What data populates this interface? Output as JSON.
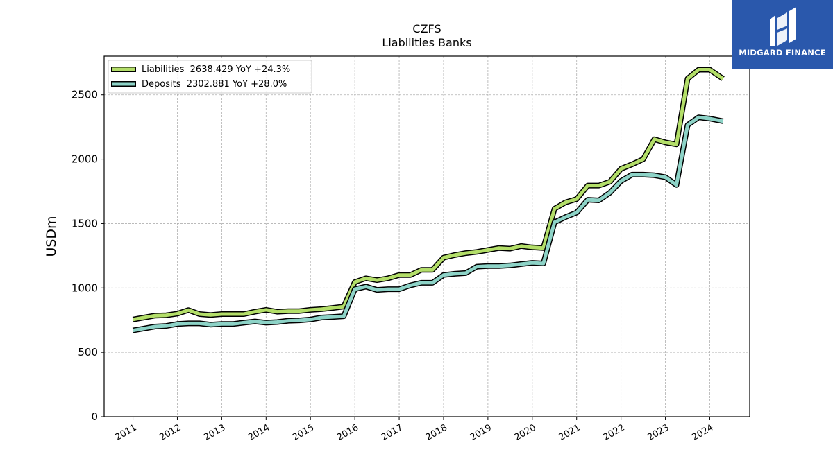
{
  "brand": {
    "name": "MIDGARD FINANCE",
    "background": "#2a58ac",
    "icon": "midgard-logo-icon"
  },
  "chart_data": {
    "type": "line",
    "title": "CZFS",
    "subtitle": "Liabilities Banks",
    "xlabel": "",
    "ylabel": "USDm",
    "ylim": [
      0,
      2800
    ],
    "xlim": [
      2010.35,
      2024.9
    ],
    "yticks": [
      0,
      500,
      1000,
      1500,
      2000,
      2500
    ],
    "xticks": [
      2011,
      2012,
      2013,
      2014,
      2015,
      2016,
      2017,
      2018,
      2019,
      2020,
      2021,
      2022,
      2023,
      2024
    ],
    "xtick_labels": [
      "2011",
      "2012",
      "2013",
      "2014",
      "2015",
      "2016",
      "2017",
      "2018",
      "2019",
      "2020",
      "2021",
      "2022",
      "2023",
      "2024"
    ],
    "grid": true,
    "legend_position": "top-left",
    "x": [
      2011.0,
      2011.25,
      2011.5,
      2011.75,
      2012.0,
      2012.25,
      2012.5,
      2012.75,
      2013.0,
      2013.25,
      2013.5,
      2013.75,
      2014.0,
      2014.25,
      2014.5,
      2014.75,
      2015.0,
      2015.25,
      2015.5,
      2015.75,
      2016.0,
      2016.25,
      2016.5,
      2016.75,
      2017.0,
      2017.25,
      2017.5,
      2017.75,
      2018.0,
      2018.25,
      2018.5,
      2018.75,
      2019.0,
      2019.25,
      2019.5,
      2019.75,
      2020.0,
      2020.25,
      2020.5,
      2020.75,
      2021.0,
      2021.25,
      2021.5,
      2021.75,
      2022.0,
      2022.25,
      2022.5,
      2022.75,
      2023.0,
      2023.25,
      2023.5,
      2023.75,
      2024.0,
      2024.3
    ],
    "series": [
      {
        "name": "Liabilities",
        "legend": "Liabilities  2638.429 YoY +24.3%",
        "color": "#b3de69",
        "values": [
          755,
          770,
          785,
          788,
          800,
          828,
          797,
          790,
          797,
          797,
          797,
          815,
          830,
          815,
          820,
          820,
          830,
          835,
          845,
          855,
          1045,
          1075,
          1060,
          1075,
          1100,
          1100,
          1140,
          1140,
          1235,
          1255,
          1270,
          1280,
          1295,
          1310,
          1305,
          1325,
          1315,
          1310,
          1615,
          1665,
          1690,
          1795,
          1795,
          1825,
          1925,
          1960,
          2000,
          2155,
          2130,
          2115,
          2625,
          2695,
          2695,
          2625
        ]
      },
      {
        "name": "Deposits",
        "legend": "Deposits  2302.881 YoY +28.0%",
        "color": "#8dd3c7",
        "values": [
          670,
          685,
          700,
          705,
          720,
          725,
          725,
          715,
          720,
          720,
          730,
          740,
          730,
          735,
          745,
          748,
          755,
          770,
          775,
          780,
          990,
          1010,
          985,
          990,
          990,
          1020,
          1040,
          1040,
          1100,
          1110,
          1115,
          1165,
          1170,
          1170,
          1175,
          1185,
          1195,
          1190,
          1510,
          1550,
          1585,
          1685,
          1680,
          1740,
          1830,
          1880,
          1880,
          1875,
          1860,
          1800,
          2265,
          2325,
          2315,
          2295
        ]
      }
    ]
  }
}
